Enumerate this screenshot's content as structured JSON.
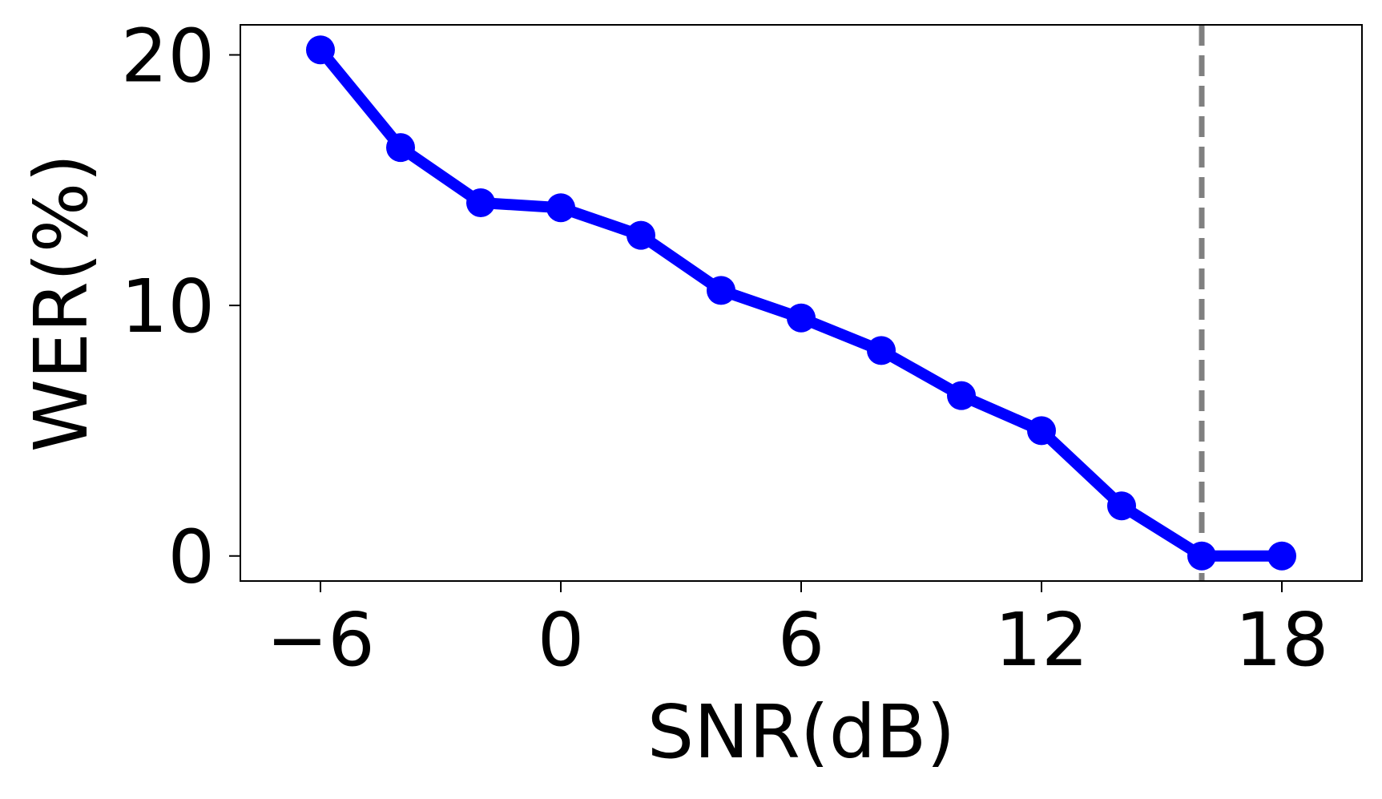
{
  "chart_data": {
    "type": "line",
    "title": "",
    "xlabel": "SNR(dB)",
    "ylabel": "WER(%)",
    "xlim": [
      -8,
      20
    ],
    "ylim": [
      -1,
      21.2
    ],
    "xticks": [
      -6,
      0,
      6,
      12,
      18
    ],
    "xtick_labels": [
      "−6",
      "0",
      "6",
      "12",
      "18"
    ],
    "yticks": [
      0,
      10,
      20
    ],
    "ytick_labels": [
      "0",
      "10",
      "20"
    ],
    "grid": false,
    "legend": null,
    "series": [
      {
        "color": "#0000ff",
        "marker": "circle",
        "x": [
          -6,
          -4,
          -2,
          0,
          2,
          4,
          6,
          8,
          10,
          12,
          14,
          16,
          18
        ],
        "y": [
          20.2,
          16.3,
          14.1,
          13.9,
          12.8,
          10.6,
          9.5,
          8.2,
          6.4,
          5.0,
          2.0,
          0.0,
          0.0
        ]
      }
    ],
    "reference_lines": [
      {
        "orientation": "vertical",
        "x": 16,
        "style": "dashed",
        "color": "#808080"
      }
    ]
  }
}
